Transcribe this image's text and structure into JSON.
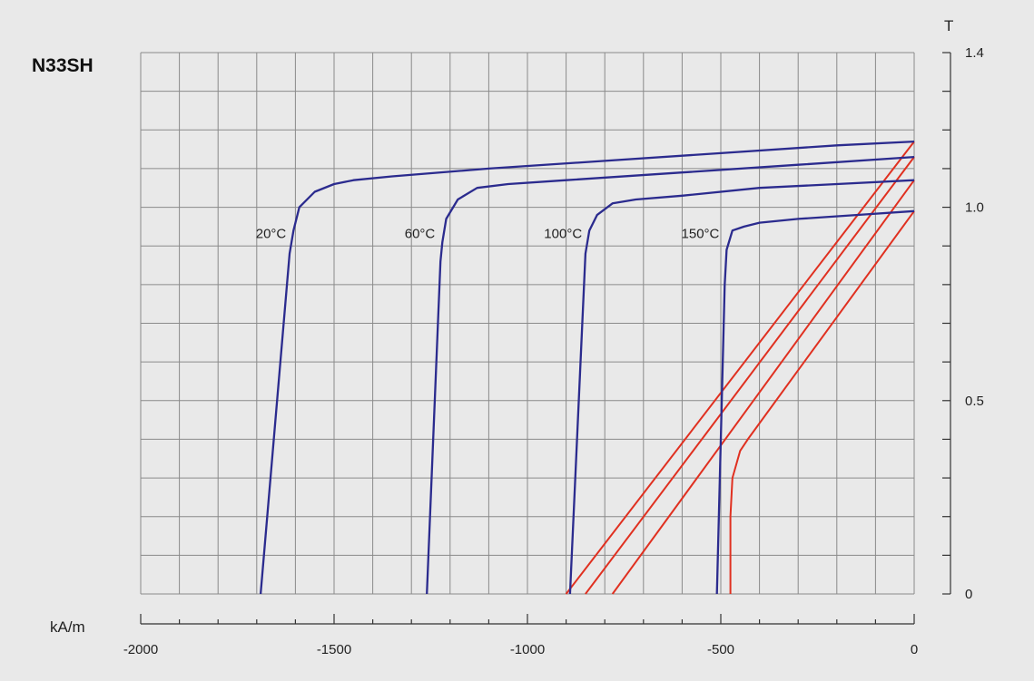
{
  "chart_data": {
    "type": "line",
    "title": "N33SH",
    "xlabel": "kA/m",
    "ylabel": "T",
    "xlim": [
      -2000,
      0
    ],
    "ylim": [
      0,
      1.4
    ],
    "x_ticks": [
      -2000,
      -1500,
      -1000,
      -500,
      0
    ],
    "y_ticks": [
      0,
      0.5,
      1.0,
      1.4
    ],
    "x_tick_labels": [
      "-2000",
      "-1500",
      "-1000",
      "-500",
      "0"
    ],
    "y_tick_labels": [
      "0",
      "0.5",
      "1.0",
      "1.4"
    ],
    "grid": true,
    "colors": {
      "demag": "#2b2b8e",
      "load": "#e03020",
      "grid": "#8a8a8a"
    },
    "demagnetization_curves": [
      {
        "label": "20°C",
        "points": [
          [
            0,
            1.17
          ],
          [
            -200,
            1.16
          ],
          [
            -500,
            1.14
          ],
          [
            -800,
            1.12
          ],
          [
            -1100,
            1.1
          ],
          [
            -1350,
            1.08
          ],
          [
            -1450,
            1.07
          ],
          [
            -1500,
            1.06
          ],
          [
            -1550,
            1.04
          ],
          [
            -1590,
            1.0
          ],
          [
            -1605,
            0.94
          ],
          [
            -1615,
            0.88
          ],
          [
            -1690,
            0.0
          ]
        ]
      },
      {
        "label": "60°C",
        "points": [
          [
            0,
            1.13
          ],
          [
            -300,
            1.11
          ],
          [
            -600,
            1.09
          ],
          [
            -900,
            1.07
          ],
          [
            -1050,
            1.06
          ],
          [
            -1130,
            1.05
          ],
          [
            -1180,
            1.02
          ],
          [
            -1210,
            0.97
          ],
          [
            -1220,
            0.91
          ],
          [
            -1225,
            0.86
          ],
          [
            -1260,
            0.0
          ]
        ]
      },
      {
        "label": "100°C",
        "points": [
          [
            0,
            1.07
          ],
          [
            -200,
            1.06
          ],
          [
            -400,
            1.05
          ],
          [
            -600,
            1.03
          ],
          [
            -720,
            1.02
          ],
          [
            -780,
            1.01
          ],
          [
            -820,
            0.98
          ],
          [
            -840,
            0.94
          ],
          [
            -850,
            0.88
          ],
          [
            -890,
            0.0
          ]
        ]
      },
      {
        "label": "150°C",
        "points": [
          [
            0,
            0.99
          ],
          [
            -150,
            0.98
          ],
          [
            -300,
            0.97
          ],
          [
            -400,
            0.96
          ],
          [
            -440,
            0.95
          ],
          [
            -470,
            0.94
          ],
          [
            -485,
            0.89
          ],
          [
            -490,
            0.8
          ],
          [
            -510,
            0.0
          ]
        ]
      }
    ],
    "load_lines": [
      {
        "points": [
          [
            0,
            1.17
          ],
          [
            -900,
            0.0
          ]
        ]
      },
      {
        "points": [
          [
            0,
            1.13
          ],
          [
            -850,
            0.0
          ]
        ]
      },
      {
        "points": [
          [
            0,
            1.07
          ],
          [
            -780,
            0.0
          ]
        ]
      },
      {
        "points": [
          [
            0,
            0.99
          ],
          [
            -430,
            0.4
          ],
          [
            -450,
            0.37
          ],
          [
            -470,
            0.3
          ],
          [
            -475,
            0.2
          ],
          [
            -475,
            0.0
          ]
        ]
      }
    ]
  }
}
